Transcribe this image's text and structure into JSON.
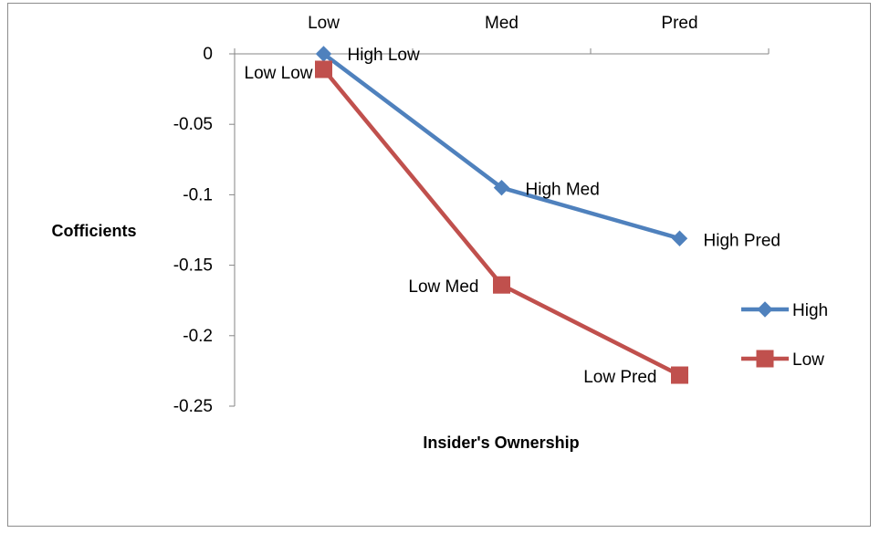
{
  "chart_data": {
    "type": "line",
    "categories": [
      "Low",
      "Med",
      "Pred"
    ],
    "xlabel": "Insider's Ownership",
    "ylabel": "Cofficients",
    "ylim": [
      -0.25,
      0
    ],
    "yticks": [
      0,
      -0.05,
      -0.1,
      -0.15,
      -0.2,
      -0.25
    ],
    "ytick_labels": [
      "0",
      "-0.05",
      "-0.1",
      "-0.15",
      "-0.2",
      "-0.25"
    ],
    "x_axis_position": "top",
    "grid": false,
    "legend": "right",
    "series": [
      {
        "name": "High",
        "color": "#4f81bd",
        "marker": "diamond",
        "values": [
          0,
          -0.095,
          -0.131
        ],
        "labels": [
          "High  Low",
          "High  Med",
          "High  Pred"
        ]
      },
      {
        "name": "Low",
        "color": "#c0504d",
        "marker": "square",
        "values": [
          -0.011,
          -0.164,
          -0.228
        ],
        "labels": [
          "Low Low",
          "Low Med",
          "Low Pred"
        ]
      }
    ]
  }
}
